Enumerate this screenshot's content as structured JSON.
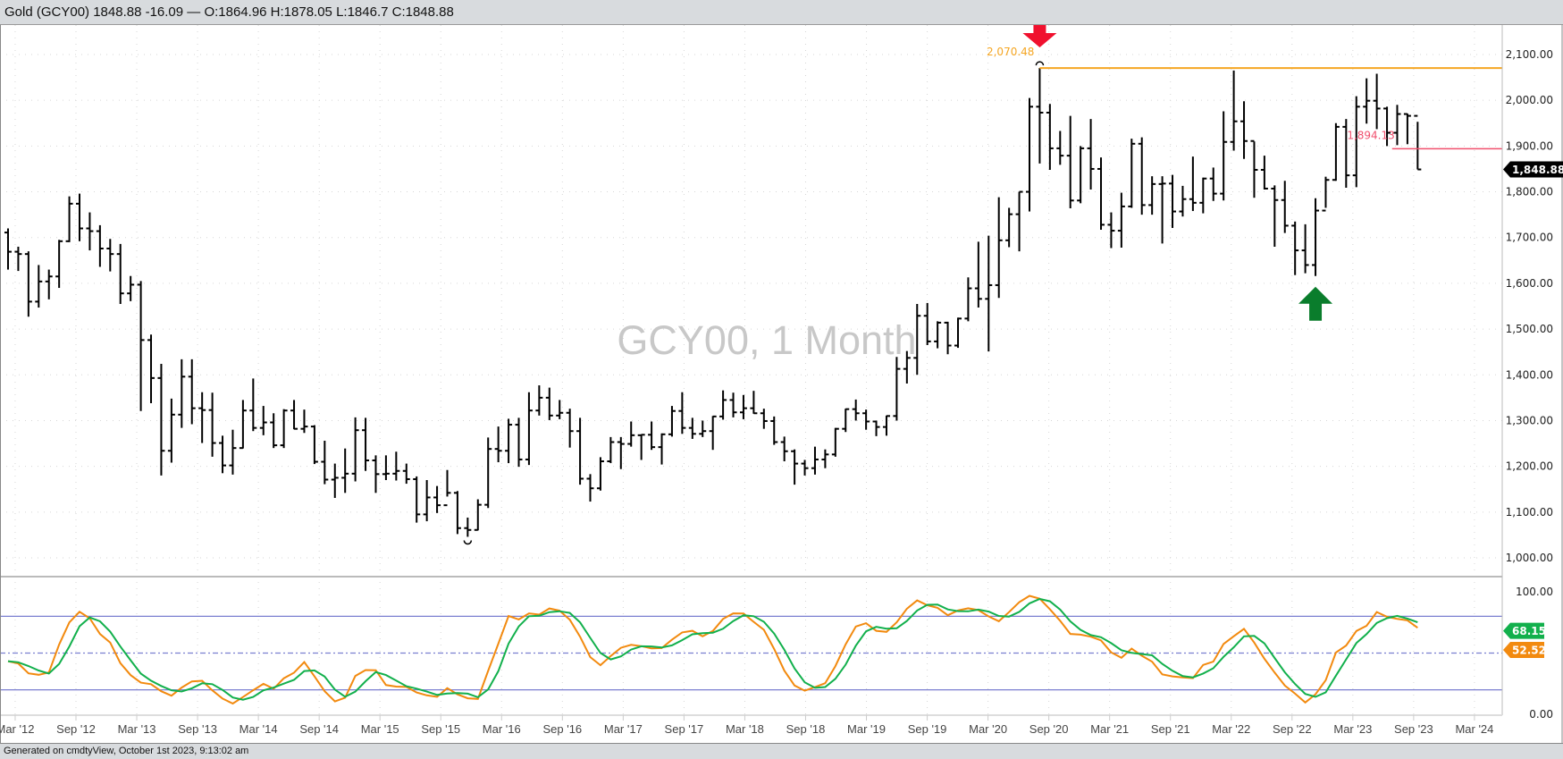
{
  "header": {
    "title": "Gold (GCY00) 1848.88 -16.09 — O:1864.96 H:1878.05 L:1846.7 C:1848.88"
  },
  "footer": {
    "text": "Generated on cmdtyView, October 1st 2023, 9:13:02 am"
  },
  "watermark": "GCY00, 1 Month",
  "colors": {
    "bars": "#000000",
    "high_line": "#f5a623",
    "level_line": "#f0506e",
    "k_line": "#f28a0f",
    "d_line": "#12b04c",
    "band": "#7a7fd0",
    "down_arrow": "#f0102e",
    "up_arrow": "#0a7d2c"
  },
  "chart_data": {
    "type": "ohlc",
    "interval": "1 Month",
    "start": "Mar 2012",
    "ylim": [
      1000,
      2100
    ],
    "y_ticks": [
      "1,000.00",
      "1,100.00",
      "1,200.00",
      "1,300.00",
      "1,400.00",
      "1,500.00",
      "1,600.00",
      "1,700.00",
      "1,800.00",
      "1,900.00",
      "2,000.00",
      "2,100.00"
    ],
    "x_ticks": [
      "Mar '12",
      "Sep '12",
      "Mar '13",
      "Sep '13",
      "Mar '14",
      "Sep '14",
      "Mar '15",
      "Sep '15",
      "Mar '16",
      "Sep '16",
      "Mar '17",
      "Sep '17",
      "Mar '18",
      "Sep '18",
      "Mar '19",
      "Sep '19",
      "Mar '20",
      "Sep '20",
      "Mar '21",
      "Sep '21",
      "Mar '22",
      "Sep '22",
      "Mar '23",
      "Sep '23",
      "Mar '24"
    ],
    "first_open": 1711,
    "close": [
      1669,
      1664,
      1560,
      1604,
      1615,
      1692,
      1774,
      1720,
      1714,
      1676,
      1664,
      1578,
      1597,
      1476,
      1393,
      1234,
      1313,
      1396,
      1327,
      1323,
      1251,
      1202,
      1240,
      1322,
      1284,
      1296,
      1246,
      1322,
      1282,
      1287,
      1210,
      1171,
      1175,
      1184,
      1279,
      1213,
      1183,
      1184,
      1190,
      1172,
      1095,
      1132,
      1115,
      1142,
      1065,
      1061,
      1116,
      1238,
      1234,
      1291,
      1215,
      1322,
      1350,
      1311,
      1317,
      1277,
      1173,
      1152,
      1211,
      1253,
      1249,
      1268,
      1269,
      1242,
      1270,
      1321,
      1284,
      1271,
      1277,
      1309,
      1345,
      1318,
      1327,
      1316,
      1299,
      1253,
      1233,
      1206,
      1196,
      1215,
      1226,
      1282,
      1325,
      1316,
      1298,
      1286,
      1310,
      1413,
      1437,
      1529,
      1473,
      1514,
      1464,
      1523,
      1589,
      1566,
      1596,
      1694,
      1751,
      1800,
      1986,
      1973,
      1895,
      1879,
      1781,
      1895,
      1850,
      1728,
      1715,
      1768,
      1905,
      1771,
      1817,
      1818,
      1757,
      1784,
      1776,
      1829,
      1796,
      1909,
      1954,
      1911,
      1848,
      1807,
      1782,
      1726,
      1672,
      1640,
      1759,
      1826,
      1942,
      1836,
      1986,
      1999,
      1982,
      1929,
      1970,
      1966,
      1848.88
    ],
    "high": [
      1720,
      1680,
      1670,
      1640,
      1630,
      1695,
      1790,
      1796,
      1755,
      1727,
      1697,
      1686,
      1616,
      1605,
      1488,
      1424,
      1348,
      1434,
      1434,
      1362,
      1361,
      1267,
      1280,
      1345,
      1392,
      1332,
      1316,
      1325,
      1345,
      1324,
      1290,
      1256,
      1206,
      1239,
      1307,
      1306,
      1224,
      1224,
      1232,
      1206,
      1178,
      1170,
      1157,
      1192,
      1146,
      1088,
      1128,
      1263,
      1287,
      1304,
      1306,
      1362,
      1377,
      1372,
      1345,
      1326,
      1306,
      1183,
      1220,
      1264,
      1264,
      1298,
      1270,
      1298,
      1272,
      1332,
      1362,
      1306,
      1300,
      1310,
      1366,
      1361,
      1356,
      1365,
      1326,
      1309,
      1265,
      1237,
      1214,
      1243,
      1237,
      1284,
      1326,
      1346,
      1324,
      1300,
      1311,
      1439,
      1452,
      1555,
      1557,
      1517,
      1516,
      1525,
      1613,
      1691,
      1704,
      1788,
      1765,
      1800,
      2005,
      2070.48,
      1992,
      1933,
      1966,
      1900,
      1959,
      1875,
      1755,
      1798,
      1916,
      1919,
      1834,
      1834,
      1837,
      1813,
      1877,
      1831,
      1853,
      1976,
      2065,
      1998,
      1910,
      1879,
      1814,
      1824,
      1735,
      1729,
      1786,
      1833,
      1950,
      1959,
      2009,
      2048,
      2058,
      1986,
      1990,
      1971,
      1953
    ],
    "low": [
      1630,
      1627,
      1527,
      1547,
      1565,
      1590,
      1690,
      1692,
      1672,
      1636,
      1626,
      1555,
      1561,
      1321,
      1338,
      1180,
      1208,
      1284,
      1292,
      1251,
      1221,
      1185,
      1182,
      1239,
      1277,
      1268,
      1240,
      1240,
      1281,
      1273,
      1205,
      1161,
      1131,
      1142,
      1167,
      1190,
      1142,
      1170,
      1169,
      1162,
      1077,
      1080,
      1098,
      1134,
      1052,
      1046,
      1060,
      1109,
      1209,
      1207,
      1199,
      1203,
      1311,
      1301,
      1303,
      1241,
      1160,
      1123,
      1147,
      1207,
      1194,
      1243,
      1214,
      1236,
      1204,
      1265,
      1271,
      1260,
      1264,
      1236,
      1302,
      1307,
      1303,
      1315,
      1282,
      1247,
      1211,
      1160,
      1180,
      1182,
      1196,
      1221,
      1275,
      1300,
      1280,
      1266,
      1267,
      1300,
      1381,
      1400,
      1465,
      1458,
      1445,
      1459,
      1517,
      1547,
      1451,
      1568,
      1679,
      1670,
      1757,
      1862,
      1848,
      1859,
      1764,
      1775,
      1805,
      1717,
      1677,
      1678,
      1765,
      1750,
      1750,
      1687,
      1721,
      1746,
      1758,
      1753,
      1780,
      1781,
      1890,
      1872,
      1787,
      1805,
      1680,
      1710,
      1618,
      1622,
      1616,
      1765,
      1824,
      1809,
      1810,
      1949,
      1937,
      1900,
      1902,
      1904,
      1848.88
    ],
    "last_price_label": "1,848.88",
    "last_price": 1848.88,
    "annotations": {
      "high_label": "2,070.48",
      "high_value": 2070.48,
      "high_bar_index": 101,
      "level_label": "1,894.13",
      "level_value": 1894.13,
      "level_start_index": 135.5,
      "down_arrow_bar_index": 101,
      "up_arrow_bar_index": 128,
      "low_marker_bar_index": 45
    },
    "oscillator": {
      "type": "stochastic",
      "ylim": [
        0,
        100
      ],
      "y_ticks": [
        "0.00",
        "100.00"
      ],
      "bands": [
        20,
        50,
        80
      ],
      "k_label": "52.52",
      "k_last": 52.52,
      "d_label": "68.15",
      "d_last": 68.15
    }
  }
}
